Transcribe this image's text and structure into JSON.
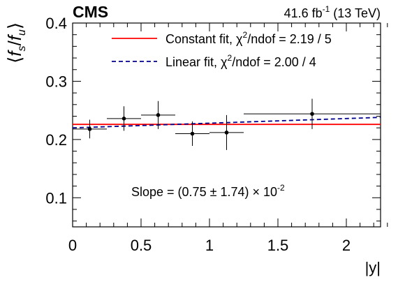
{
  "header": {
    "experiment": "CMS",
    "lumi_value": "41.6 fb",
    "lumi_exp": "-1",
    "lumi_energy": " (13 TeV)"
  },
  "axes": {
    "ylabel": "⟨f_s/f_u⟩",
    "xlabel": "|y|"
  },
  "legend": {
    "constant": {
      "label_prefix": "Constant fit, χ",
      "label_sup": "2",
      "label_suffix": "/ndof = 2.19 / 5"
    },
    "linear": {
      "label_prefix": "Linear fit, χ",
      "label_sup": "2",
      "label_suffix": "/ndof = 2.00 / 4"
    }
  },
  "annotation": {
    "slope_prefix": "Slope =  (0.75 ± 1.74) × 10",
    "slope_exp": "-2"
  },
  "colors": {
    "constant_fit": "#ff0000",
    "linear_fit": "#00008b",
    "points": "#000000"
  },
  "chart_data": {
    "type": "scatter",
    "xlabel": "|y|",
    "ylabel": "⟨f_s/f_u⟩",
    "xlim": [
      0,
      2.25
    ],
    "ylim": [
      0.05,
      0.4
    ],
    "xticks": [
      0,
      0.5,
      1,
      1.5,
      2
    ],
    "yticks": [
      0.1,
      0.2,
      0.3,
      0.4
    ],
    "xtick_labels": [
      "0",
      "0.5",
      "1",
      "1.5",
      "2"
    ],
    "ytick_labels": [
      "0.1",
      "0.2",
      "0.3",
      "0.4"
    ],
    "series": [
      {
        "type": "errorbar",
        "points": [
          {
            "x": 0.125,
            "xerr": 0.125,
            "y": 0.218,
            "yerr": 0.016
          },
          {
            "x": 0.375,
            "xerr": 0.125,
            "y": 0.236,
            "yerr": 0.021
          },
          {
            "x": 0.625,
            "xerr": 0.125,
            "y": 0.242,
            "yerr": 0.024
          },
          {
            "x": 0.875,
            "xerr": 0.125,
            "y": 0.21,
            "yerr": 0.021
          },
          {
            "x": 1.125,
            "xerr": 0.125,
            "y": 0.212,
            "yerr": 0.03
          },
          {
            "x": 1.75,
            "xerr": 0.5,
            "y": 0.244,
            "yerr": 0.026
          }
        ]
      },
      {
        "name": "Constant fit, χ²/ndof = 2.19 / 5",
        "type": "line",
        "style": "solid",
        "x": [
          0,
          2.25
        ],
        "y": [
          0.226,
          0.226
        ]
      },
      {
        "name": "Linear fit, χ²/ndof = 2.00 / 4",
        "type": "line",
        "style": "dashed",
        "x": [
          0,
          2.25
        ],
        "y": [
          0.22,
          0.238
        ]
      }
    ],
    "annotation": "Slope =  (0.75 ± 1.74) × 10^-2",
    "legend_position": "top-right"
  }
}
